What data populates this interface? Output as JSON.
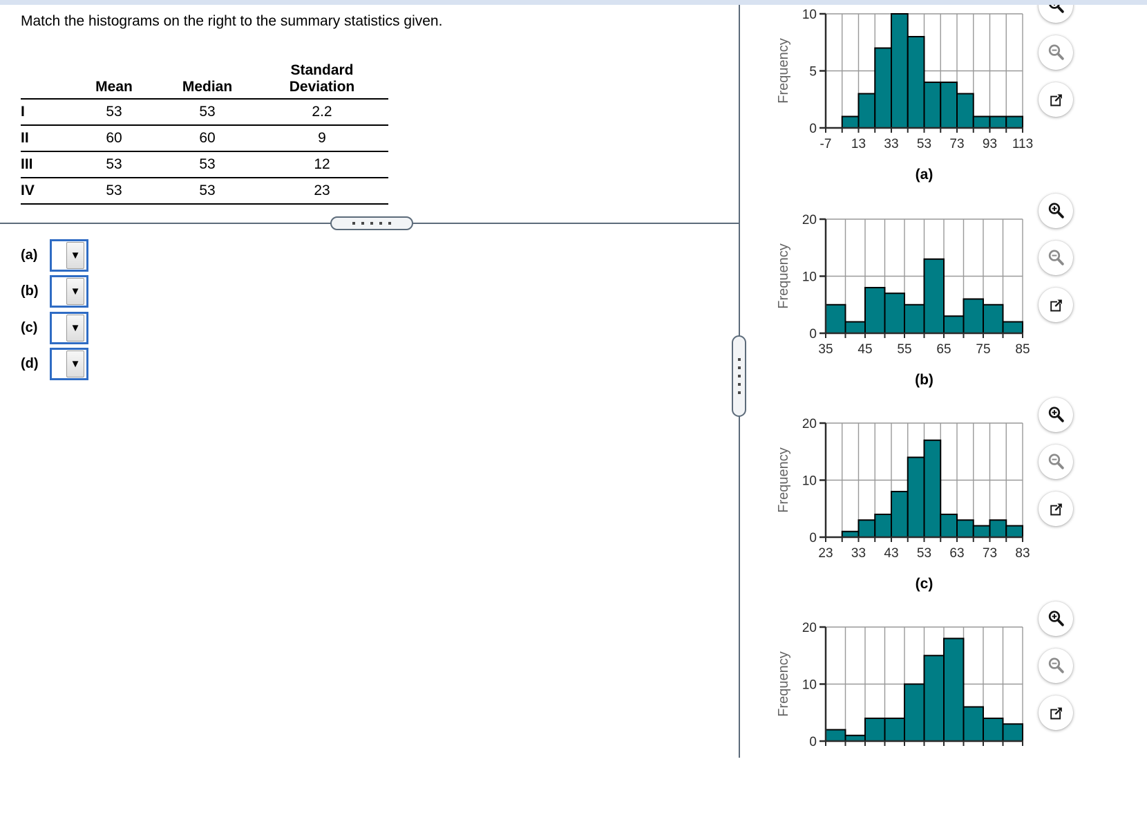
{
  "title": "Match the histograms on the right to the summary statistics given.",
  "table": {
    "columns": [
      "Mean",
      "Median",
      "Standard Deviation"
    ],
    "rows": [
      {
        "label": "I",
        "mean": "53",
        "median": "53",
        "sd": "2.2"
      },
      {
        "label": "II",
        "mean": "60",
        "median": "60",
        "sd": "9"
      },
      {
        "label": "III",
        "mean": "53",
        "median": "53",
        "sd": "12"
      },
      {
        "label": "IV",
        "mean": "53",
        "median": "53",
        "sd": "23"
      }
    ]
  },
  "answers": [
    {
      "label": "(a)",
      "value": ""
    },
    {
      "label": "(b)",
      "value": ""
    },
    {
      "label": "(c)",
      "value": ""
    },
    {
      "label": "(d)",
      "value": ""
    }
  ],
  "controls": {
    "per_chart_icons": [
      "magnifier-plus",
      "magnifier-minus",
      "open-in-new-window"
    ]
  },
  "colors": {
    "bar_fill": "#007d85",
    "bar_stroke": "#000000",
    "grid": "#999999",
    "axis": "#2b2b2b",
    "tick_text": "#2b2b2b",
    "axis_label_text": "#666666",
    "divider": "#5c6b7a",
    "select_border": "#2f6cc4",
    "topbar": "#d8e2f1"
  },
  "chart_data": [
    {
      "id": "a",
      "type": "histogram",
      "caption": "(a)",
      "ylabel": "Frequency",
      "xlim": [
        -7,
        113
      ],
      "bin_width": 10,
      "xticklabels": [
        "-7",
        "13",
        "33",
        "53",
        "73",
        "93",
        "113"
      ],
      "yticks": [
        0,
        5,
        10
      ],
      "ylim": [
        0,
        10
      ],
      "frequencies": [
        0,
        1,
        3,
        7,
        10,
        8,
        4,
        4,
        3,
        1,
        1,
        1
      ],
      "grid": true,
      "x_axis_labels_visible": true
    },
    {
      "id": "b",
      "type": "histogram",
      "caption": "(b)",
      "ylabel": "Frequency",
      "xlim": [
        35,
        85
      ],
      "bin_width": 5,
      "xticklabels": [
        "35",
        "45",
        "55",
        "65",
        "75",
        "85"
      ],
      "yticks": [
        0,
        10,
        20
      ],
      "ylim": [
        0,
        20
      ],
      "frequencies": [
        5,
        2,
        8,
        7,
        5,
        13,
        3,
        6,
        5,
        2
      ],
      "grid": true,
      "x_axis_labels_visible": true
    },
    {
      "id": "c",
      "type": "histogram",
      "caption": "(c)",
      "ylabel": "Frequency",
      "xlim": [
        23,
        83
      ],
      "bin_width": 5,
      "xticklabels": [
        "23",
        "33",
        "43",
        "53",
        "63",
        "73",
        "83"
      ],
      "yticks": [
        0,
        10,
        20
      ],
      "ylim": [
        0,
        20
      ],
      "frequencies": [
        0,
        1,
        3,
        4,
        8,
        14,
        17,
        4,
        3,
        2,
        3,
        2
      ],
      "grid": true,
      "x_axis_labels_visible": true
    },
    {
      "id": "d",
      "type": "histogram",
      "caption": "",
      "ylabel": "Frequency",
      "xticklabels": [],
      "yticks": [
        0,
        10,
        20
      ],
      "ylim": [
        0,
        20
      ],
      "frequencies": [
        2,
        1,
        4,
        4,
        10,
        15,
        18,
        6,
        4,
        3
      ],
      "grid": true,
      "x_axis_labels_visible": false
    }
  ]
}
